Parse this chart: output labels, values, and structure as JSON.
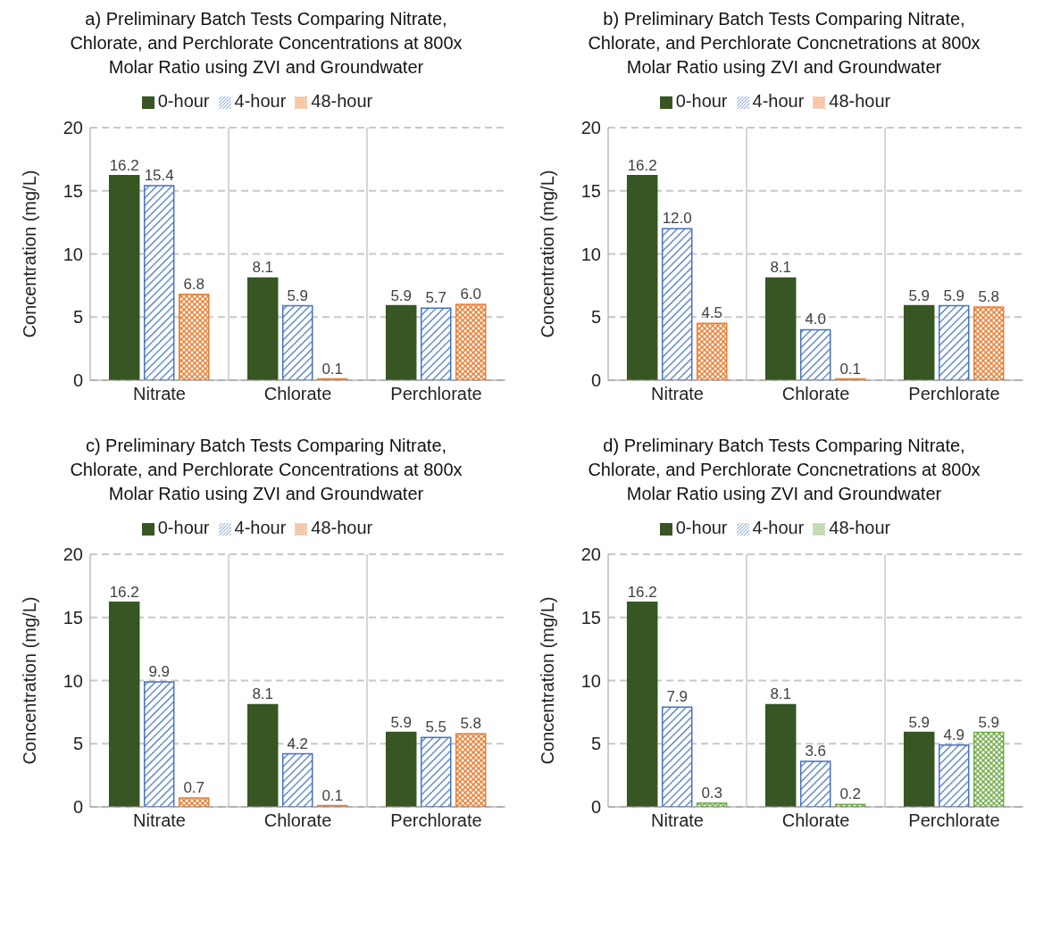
{
  "chart_data": [
    {
      "type": "bar",
      "title": "a) Preliminary Batch Tests Comparing Nitrate, Chlorate, and Perchlorate Concentrations at 800x Molar Ratio using ZVI and Groundwater",
      "categories": [
        "Nitrate",
        "Chlorate",
        "Perchlorate"
      ],
      "ylabel": "Concentration (mg/L)",
      "ylim": [
        0,
        20
      ],
      "yticks": [
        0,
        5,
        10,
        15,
        20
      ],
      "grid": true,
      "legend": "top",
      "series": [
        {
          "name": "0-hour",
          "color": "#375623",
          "values": [
            16.2,
            8.1,
            5.9
          ],
          "value_labels": [
            "16.2",
            "8.1",
            "5.9"
          ]
        },
        {
          "name": "4-hour",
          "color": "#4472c4",
          "values": [
            15.4,
            5.9,
            5.7
          ],
          "value_labels": [
            "15.4",
            "5.9",
            "5.7"
          ]
        },
        {
          "name": "48-hour",
          "color": "#ed7d31",
          "values": [
            6.8,
            0.1,
            6.0
          ],
          "value_labels": [
            "6.8",
            "0.1",
            "6.0"
          ]
        }
      ]
    },
    {
      "type": "bar",
      "title": "b) Preliminary Batch Tests Comparing Nitrate, Chlorate, and Perchlorate Concnetrations at 800x Molar Ratio using ZVI and Groundwater",
      "categories": [
        "Nitrate",
        "Chlorate",
        "Perchlorate"
      ],
      "ylabel": "Concentration (mg/L)",
      "ylim": [
        0,
        20
      ],
      "yticks": [
        0,
        5,
        10,
        15,
        20
      ],
      "grid": true,
      "legend": "top",
      "series": [
        {
          "name": "0-hour",
          "color": "#375623",
          "values": [
            16.2,
            8.1,
            5.9
          ],
          "value_labels": [
            "16.2",
            "8.1",
            "5.9"
          ]
        },
        {
          "name": "4-hour",
          "color": "#4472c4",
          "values": [
            12.0,
            4.0,
            5.9
          ],
          "value_labels": [
            "12.0",
            "4.0",
            "5.9"
          ]
        },
        {
          "name": "48-hour",
          "color": "#ed7d31",
          "values": [
            4.5,
            0.1,
            5.8
          ],
          "value_labels": [
            "4.5",
            "0.1",
            "5.8"
          ]
        }
      ]
    },
    {
      "type": "bar",
      "title": "c) Preliminary Batch Tests Comparing Nitrate, Chlorate, and Perchlorate Concentrations at 800x Molar Ratio using ZVI and Groundwater",
      "categories": [
        "Nitrate",
        "Chlorate",
        "Perchlorate"
      ],
      "ylabel": "Concentration (mg/L)",
      "ylim": [
        0,
        20
      ],
      "yticks": [
        0,
        5,
        10,
        15,
        20
      ],
      "grid": true,
      "legend": "top",
      "series": [
        {
          "name": "0-hour",
          "color": "#375623",
          "values": [
            16.2,
            8.1,
            5.9
          ],
          "value_labels": [
            "16.2",
            "8.1",
            "5.9"
          ]
        },
        {
          "name": "4-hour",
          "color": "#4472c4",
          "values": [
            9.9,
            4.2,
            5.5
          ],
          "value_labels": [
            "9.9",
            "4.2",
            "5.5"
          ]
        },
        {
          "name": "48-hour",
          "color": "#ed7d31",
          "values": [
            0.7,
            0.1,
            5.8
          ],
          "value_labels": [
            "0.7",
            "0.1",
            "5.8"
          ]
        }
      ]
    },
    {
      "type": "bar",
      "title": "d) Preliminary Batch Tests Comparing Nitrate, Chlorate, and Perchlorate Concnetrations at 800x Molar Ratio using ZVI and Groundwater",
      "categories": [
        "Nitrate",
        "Chlorate",
        "Perchlorate"
      ],
      "ylabel": "Concentration (mg/L)",
      "ylim": [
        0,
        20
      ],
      "yticks": [
        0,
        5,
        10,
        15,
        20
      ],
      "grid": true,
      "legend": "top",
      "series": [
        {
          "name": "0-hour",
          "color": "#375623",
          "values": [
            16.2,
            8.1,
            5.9
          ],
          "value_labels": [
            "16.2",
            "8.1",
            "5.9"
          ]
        },
        {
          "name": "4-hour",
          "color": "#4472c4",
          "values": [
            7.9,
            3.6,
            4.9
          ],
          "value_labels": [
            "7.9",
            "3.6",
            "4.9"
          ]
        },
        {
          "name": "48-hour",
          "color": "#70ad47",
          "values": [
            0.3,
            0.2,
            5.9
          ],
          "value_labels": [
            "0.3",
            "0.2",
            "5.9"
          ]
        }
      ]
    }
  ]
}
